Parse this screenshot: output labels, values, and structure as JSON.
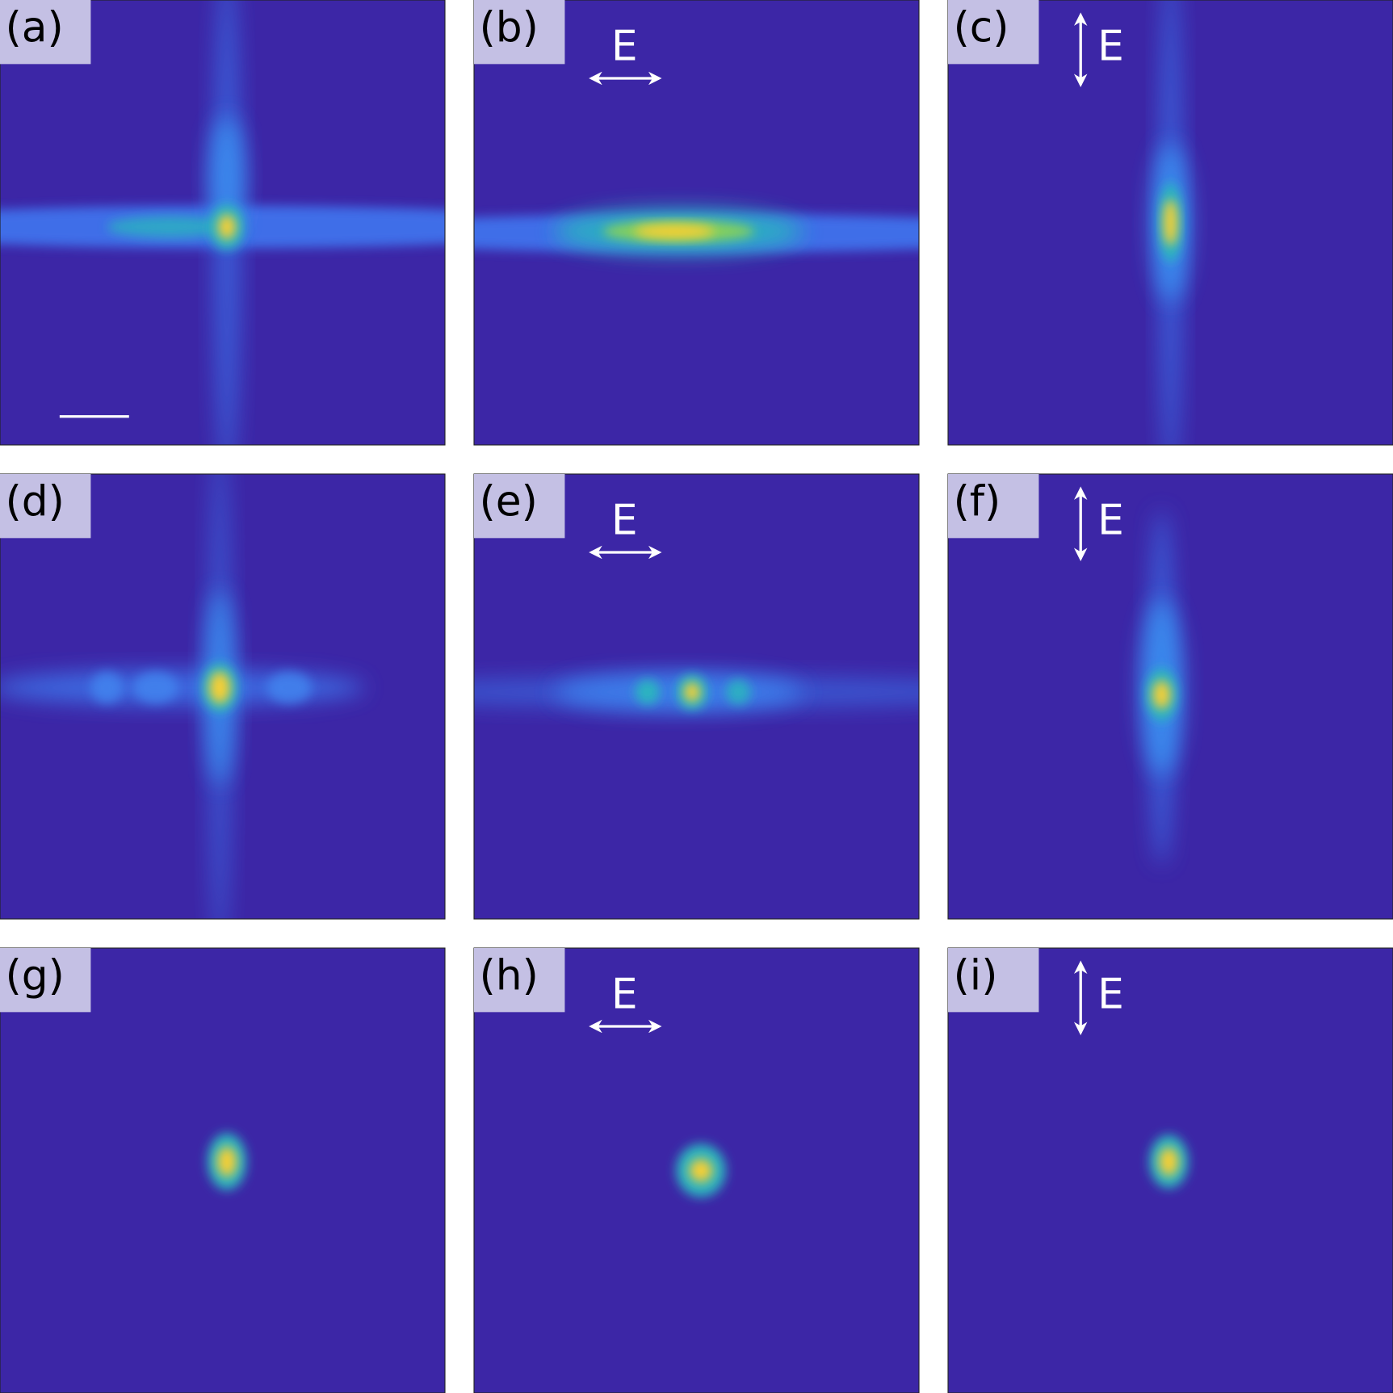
{
  "panels": [
    {
      "label": "(a)"
    },
    {
      "label": "(b)",
      "field": "E"
    },
    {
      "label": "(c)",
      "field": "E"
    },
    {
      "label": "(d)"
    },
    {
      "label": "(e)",
      "field": "E"
    },
    {
      "label": "(f)",
      "field": "E"
    },
    {
      "label": "(g)"
    },
    {
      "label": "(h)",
      "field": "E"
    },
    {
      "label": "(i)",
      "field": "E"
    }
  ]
}
